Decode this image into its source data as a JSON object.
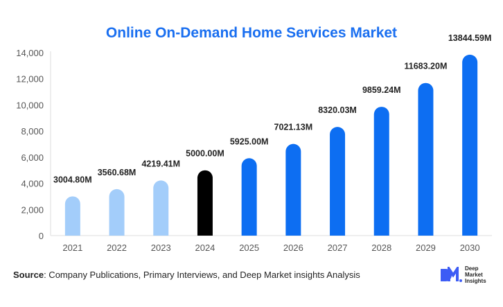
{
  "chart_data": {
    "type": "bar",
    "title": "Online On-Demand Home Services Market",
    "categories": [
      "2021",
      "2022",
      "2023",
      "2024",
      "2025",
      "2026",
      "2027",
      "2028",
      "2029",
      "2030"
    ],
    "values": [
      3004.8,
      3560.68,
      4219.41,
      5000.0,
      5925.0,
      7021.13,
      8320.03,
      9859.24,
      11683.2,
      13844.59
    ],
    "data_labels": [
      "3004.80M",
      "3560.68M",
      "4219.41M",
      "5000.00M",
      "5925.00M",
      "7021.13M",
      "8320.03M",
      "9859.24M",
      "11683.20M",
      "13844.59M"
    ],
    "ylim": [
      0,
      14000
    ],
    "yticks": [
      0,
      2000,
      4000,
      6000,
      8000,
      10000,
      12000,
      14000
    ],
    "ytick_labels": [
      "0",
      "2,000",
      "4,000",
      "6,000",
      "8,000",
      "10,000",
      "12,000",
      "14,000"
    ],
    "xlabel": "",
    "ylabel": "",
    "grid": false,
    "colors": {
      "historical": "#a3cdfa",
      "base_year": "#000000",
      "forecast": "#0d6ef2",
      "title": "#1a6ff0"
    }
  },
  "source": {
    "label": "Source",
    "text": ": Company Publications, Primary Interviews, and Deep Market insights Analysis"
  },
  "logo": {
    "mark": "DM",
    "lines": [
      "Deep",
      "Market",
      "Insights"
    ]
  }
}
